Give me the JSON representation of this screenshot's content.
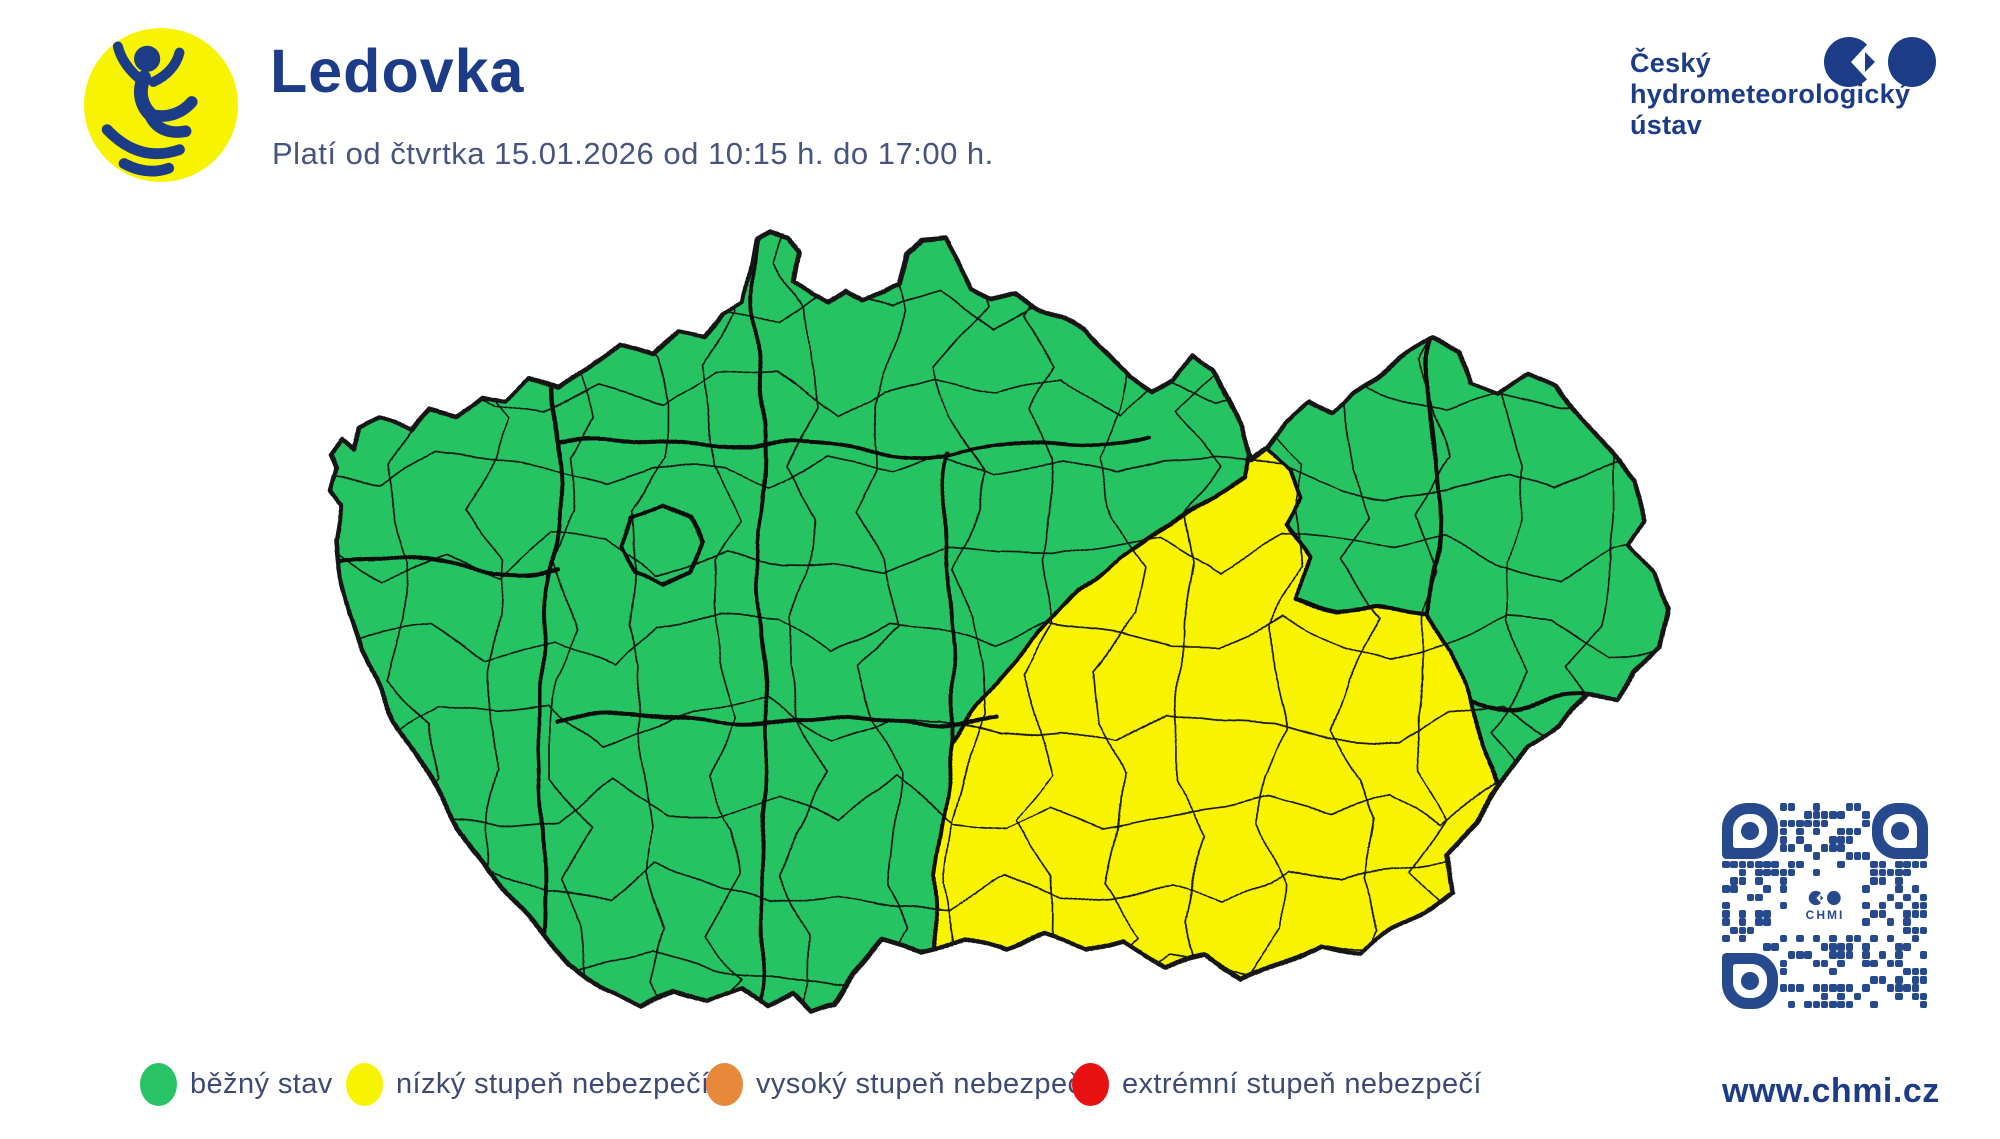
{
  "header": {
    "event_title": "Ledovka",
    "validity": "Platí od čtvrtka 15.01.2026 od 10:15 h. do 17:00 h.",
    "icon": "slipping-person-on-ice",
    "icon_bg_color": "#f8f400",
    "accent_color": "#1d3c87"
  },
  "institute": {
    "name_line1": "Český",
    "name_line2": "hydrometeorologický",
    "name_line3": "ústav",
    "logo": "two-discs-mark"
  },
  "map": {
    "country": "Česká republika",
    "border_color": "#161616",
    "normal_fill": "#27c364",
    "warning_fill": "#f8f400",
    "warning_level_shown": "nízký stupeň nebezpečí",
    "warning_area_position": "jihovýchod (Morava)"
  },
  "legend": {
    "items": [
      {
        "key": "normal",
        "label": "běžný stav",
        "color": "#27c364"
      },
      {
        "key": "low",
        "label": "nízký stupeň nebezpečí",
        "color": "#f8f400"
      },
      {
        "key": "high",
        "label": "vysoký stupeň nebezpečí",
        "color": "#e8883b"
      },
      {
        "key": "extreme",
        "label": "extrémní stupeň nebezpečí",
        "color": "#e81111"
      }
    ]
  },
  "qr": {
    "center_label": "CHMI"
  },
  "footer": {
    "website": "www.chmi.cz"
  }
}
